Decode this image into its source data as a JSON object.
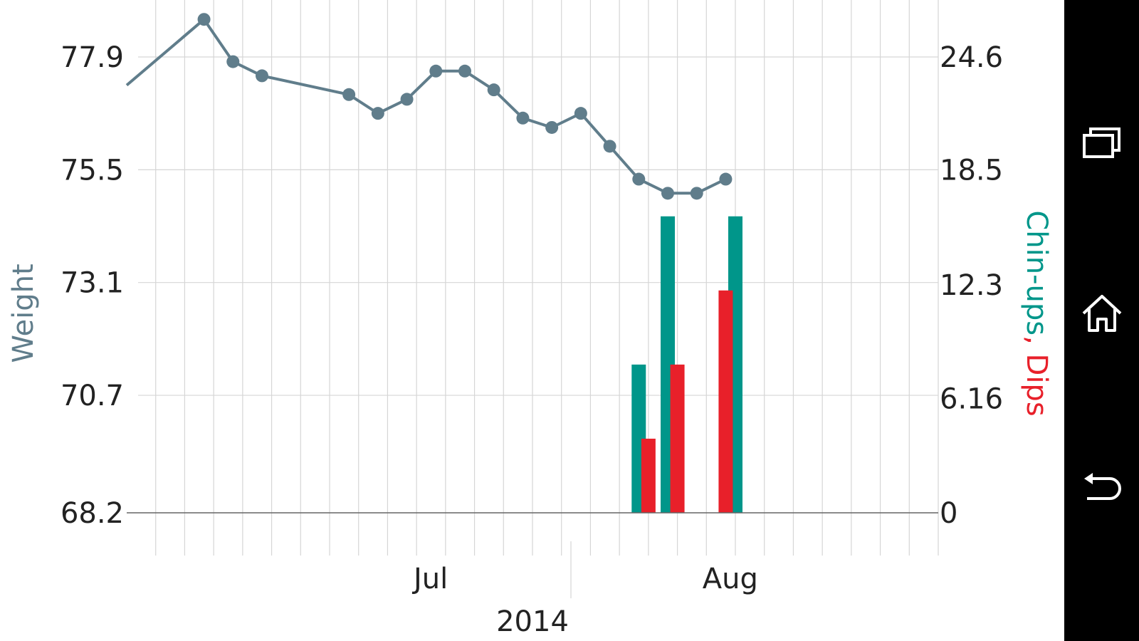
{
  "chart_data": {
    "type": "line+bar",
    "left_axis": {
      "label": "Weight",
      "ticks": [
        "77.9",
        "75.5",
        "73.1",
        "70.7",
        "68.2"
      ],
      "tick_values": [
        77.9,
        75.5,
        73.1,
        70.7,
        68.2
      ],
      "range": [
        68.2,
        77.9
      ],
      "color": "#607D8B"
    },
    "right_axis": {
      "label_parts": [
        {
          "text": "Chin-ups",
          "color": "#00968A"
        },
        {
          "text": ", ",
          "color": "#E8202A"
        },
        {
          "text": "Dips",
          "color": "#E8202A"
        }
      ],
      "ticks": [
        "24.6",
        "18.5",
        "12.3",
        "6.16",
        "0"
      ],
      "tick_values": [
        24.6,
        18.5,
        12.3,
        6.16,
        0
      ],
      "range": [
        0,
        24.6
      ]
    },
    "x_axis": {
      "month_labels": [
        {
          "text": "Jul",
          "date": "2014-07-01"
        },
        {
          "text": "Aug",
          "date": "2014-08-01"
        }
      ],
      "year_label": "2014",
      "start": "2014-06-01",
      "end": "2014-08-24",
      "minor_tick_days": 3,
      "tick_anchor": "2014-06-01"
    },
    "series": [
      {
        "name": "Weight",
        "kind": "line",
        "axis": "left",
        "color": "#607D8B",
        "points": [
          {
            "x": "2014-06-01",
            "y": 77.3
          },
          {
            "x": "2014-06-09",
            "y": 78.7
          },
          {
            "x": "2014-06-12",
            "y": 77.8
          },
          {
            "x": "2014-06-15",
            "y": 77.5
          },
          {
            "x": "2014-06-24",
            "y": 77.1
          },
          {
            "x": "2014-06-27",
            "y": 76.7
          },
          {
            "x": "2014-06-30",
            "y": 77.0
          },
          {
            "x": "2014-07-03",
            "y": 77.6
          },
          {
            "x": "2014-07-06",
            "y": 77.6
          },
          {
            "x": "2014-07-09",
            "y": 77.2
          },
          {
            "x": "2014-07-12",
            "y": 76.6
          },
          {
            "x": "2014-07-15",
            "y": 76.4
          },
          {
            "x": "2014-07-18",
            "y": 76.7
          },
          {
            "x": "2014-07-21",
            "y": 76.0
          },
          {
            "x": "2014-07-24",
            "y": 75.3
          },
          {
            "x": "2014-07-27",
            "y": 75.0
          },
          {
            "x": "2014-07-30",
            "y": 75.0
          },
          {
            "x": "2014-08-02",
            "y": 75.3
          }
        ]
      },
      {
        "name": "Chin-ups",
        "kind": "bar",
        "axis": "right",
        "color": "#00968A",
        "points": [
          {
            "x": "2014-07-24",
            "y": 8
          },
          {
            "x": "2014-07-27",
            "y": 16
          },
          {
            "x": "2014-08-03",
            "y": 16
          }
        ]
      },
      {
        "name": "Dips",
        "kind": "bar",
        "axis": "right",
        "color": "#E8202A",
        "points": [
          {
            "x": "2014-07-25",
            "y": 4
          },
          {
            "x": "2014-07-28",
            "y": 8
          },
          {
            "x": "2014-08-02",
            "y": 12
          }
        ]
      }
    ],
    "grid": true,
    "legend": "none"
  },
  "navbar": {
    "buttons": [
      {
        "name": "recent-apps-icon"
      },
      {
        "name": "home-icon"
      },
      {
        "name": "back-icon"
      }
    ],
    "background": "#000000",
    "icon_color": "#ffffff"
  }
}
